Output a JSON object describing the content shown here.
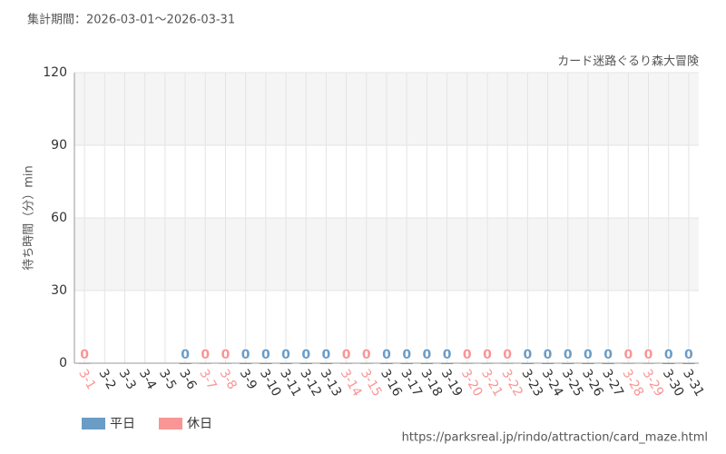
{
  "chart_data": {
    "type": "bar",
    "subtitle": "集計期間：2026-03-01～2026-03-31",
    "title": "カード迷路ぐるり森大冒険",
    "y_label": "待ち時間（分）min",
    "source": "https://parksreal.jp/rindo/attraction/card_maze.html",
    "categories": [
      "3-1",
      "3-2",
      "3-3",
      "3-4",
      "3-5",
      "3-6",
      "3-7",
      "3-8",
      "3-9",
      "3-10",
      "3-11",
      "3-12",
      "3-13",
      "3-14",
      "3-15",
      "3-16",
      "3-17",
      "3-18",
      "3-19",
      "3-20",
      "3-21",
      "3-22",
      "3-23",
      "3-24",
      "3-25",
      "3-26",
      "3-27",
      "3-28",
      "3-29",
      "3-30",
      "3-31"
    ],
    "series": [
      {
        "name": "平日",
        "color": "#6a9cc6",
        "values": [
          null,
          null,
          null,
          null,
          null,
          0,
          null,
          null,
          0,
          0,
          0,
          0,
          0,
          null,
          null,
          0,
          0,
          0,
          0,
          null,
          null,
          null,
          0,
          0,
          0,
          0,
          0,
          null,
          null,
          0,
          0
        ]
      },
      {
        "name": "休日",
        "color": "#f99595",
        "values": [
          0,
          null,
          null,
          null,
          null,
          null,
          0,
          0,
          null,
          null,
          null,
          null,
          null,
          0,
          0,
          null,
          null,
          null,
          null,
          0,
          0,
          0,
          null,
          null,
          null,
          null,
          null,
          0,
          0,
          null,
          null
        ]
      }
    ],
    "ylim": [
      0,
      120
    ],
    "yticks": [
      0,
      30,
      60,
      90,
      120
    ],
    "grid": true
  }
}
